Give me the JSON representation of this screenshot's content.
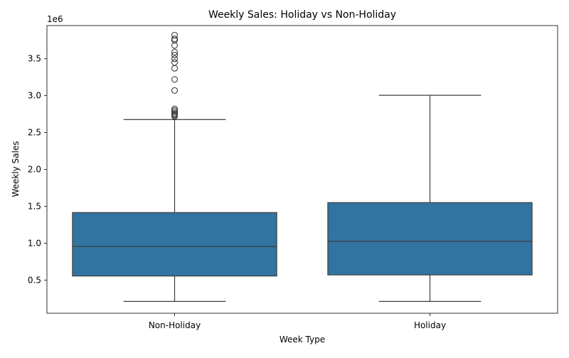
{
  "chart_data": {
    "type": "box",
    "title": "Weekly Sales: Holiday vs Non-Holiday",
    "xlabel": "Week Type",
    "ylabel": "Weekly Sales",
    "y_offset_label": "1e6",
    "categories": [
      "Non-Holiday",
      "Holiday"
    ],
    "ylim": [
      0.05,
      3.95
    ],
    "y_ticks": [
      0.5,
      1.0,
      1.5,
      2.0,
      2.5,
      3.0,
      3.5
    ],
    "y_tick_labels": [
      "0.5",
      "1.0",
      "1.5",
      "2.0",
      "2.5",
      "3.0",
      "3.5"
    ],
    "box_color": "#3274a1",
    "edge_color": "#3d3d3d",
    "grid": false,
    "legend": "none",
    "series": [
      {
        "whisker_low": 0.21,
        "q1": 0.555,
        "median": 0.955,
        "q3": 1.415,
        "whisker_high": 2.675,
        "outliers": [
          2.72,
          2.735,
          2.745,
          2.76,
          2.78,
          2.8,
          2.82,
          3.07,
          3.22,
          3.37,
          3.45,
          3.5,
          3.55,
          3.59,
          3.68,
          3.75,
          3.77,
          3.82
        ]
      },
      {
        "whisker_low": 0.21,
        "q1": 0.57,
        "median": 1.025,
        "q3": 1.55,
        "whisker_high": 3.005,
        "outliers": []
      }
    ]
  }
}
